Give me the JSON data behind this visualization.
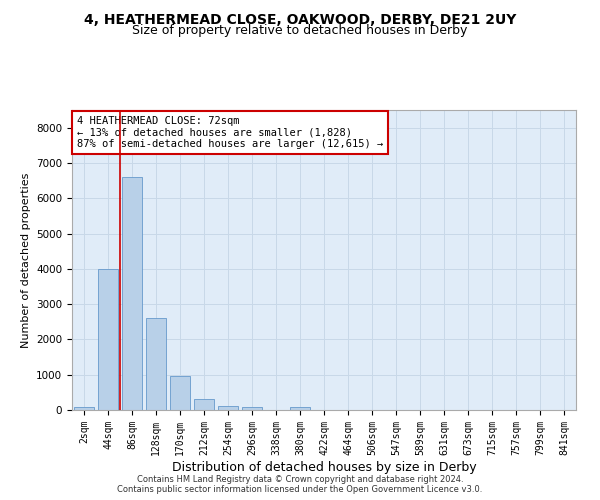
{
  "title": "4, HEATHERMEAD CLOSE, OAKWOOD, DERBY, DE21 2UY",
  "subtitle": "Size of property relative to detached houses in Derby",
  "xlabel": "Distribution of detached houses by size in Derby",
  "ylabel": "Number of detached properties",
  "categories": [
    "2sqm",
    "44sqm",
    "86sqm",
    "128sqm",
    "170sqm",
    "212sqm",
    "254sqm",
    "296sqm",
    "338sqm",
    "380sqm",
    "422sqm",
    "464sqm",
    "506sqm",
    "547sqm",
    "589sqm",
    "631sqm",
    "673sqm",
    "715sqm",
    "757sqm",
    "799sqm",
    "841sqm"
  ],
  "values": [
    80,
    4000,
    6600,
    2620,
    960,
    300,
    120,
    80,
    0,
    80,
    0,
    0,
    0,
    0,
    0,
    0,
    0,
    0,
    0,
    0,
    0
  ],
  "bar_color": "#b8d0e8",
  "bar_edge_color": "#6699cc",
  "ylim": [
    0,
    8500
  ],
  "yticks": [
    0,
    1000,
    2000,
    3000,
    4000,
    5000,
    6000,
    7000,
    8000
  ],
  "property_line_x": 1.5,
  "property_line_color": "#cc0000",
  "annotation_text": "4 HEATHERMEAD CLOSE: 72sqm\n← 13% of detached houses are smaller (1,828)\n87% of semi-detached houses are larger (12,615) →",
  "annotation_box_color": "#cc0000",
  "footnote1": "Contains HM Land Registry data © Crown copyright and database right 2024.",
  "footnote2": "Contains public sector information licensed under the Open Government Licence v3.0.",
  "grid_color": "#c8d8e8",
  "background_color": "#e0ecf8",
  "title_fontsize": 10,
  "subtitle_fontsize": 9,
  "xlabel_fontsize": 9,
  "ylabel_fontsize": 8,
  "tick_fontsize": 7,
  "footnote_fontsize": 6,
  "annotation_fontsize": 7.5
}
